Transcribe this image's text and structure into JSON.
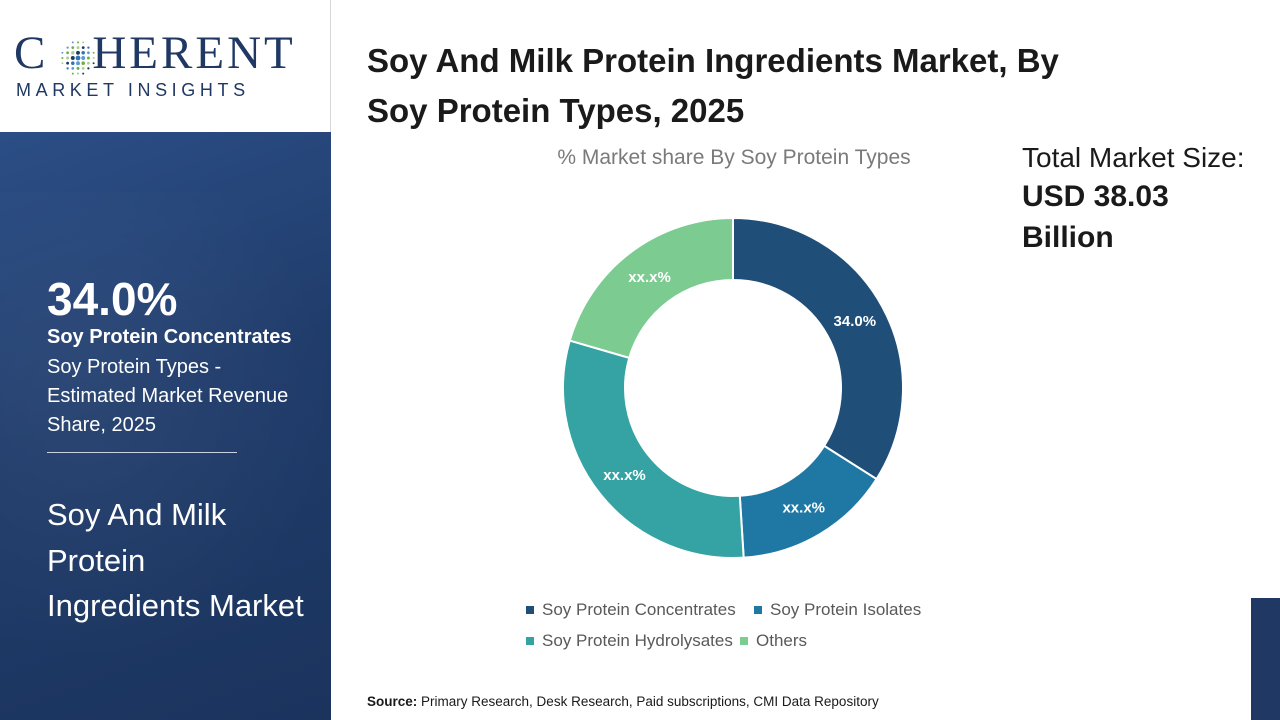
{
  "brand": {
    "logo_main": "C   HERENT",
    "logo_sub": "MARKET INSIGHTS"
  },
  "sidebar": {
    "highlight_value": "34.0%",
    "highlight_segment": "Soy Protein Concentrates",
    "highlight_description": "Soy Protein Types - Estimated Market Revenue Share, 2025",
    "market_name": "Soy And Milk Protein Ingredients Market"
  },
  "title": "Soy And Milk Protein Ingredients Market, By Soy Protein Types, 2025",
  "total_market": {
    "label": "Total Market Size:",
    "value": "USD 38.03 Billion"
  },
  "source": {
    "label": "Source:",
    "text": "Primary Research, Desk Research, Paid subscriptions, CMI Data Repository"
  },
  "chart_data": {
    "type": "pie",
    "subtype": "donut",
    "title": "% Market share By Soy Protein Types",
    "categories": [
      "Soy Protein Concentrates",
      "Soy Protein Isolates",
      "Soy Protein Hydrolysates",
      "Others"
    ],
    "values": [
      34.0,
      15.0,
      30.5,
      20.5
    ],
    "data_labels": [
      "34.0%",
      "xx.x%",
      "xx.x%",
      "xx.x%"
    ],
    "colors": [
      "#1f4e79",
      "#1f78a4",
      "#35a3a3",
      "#7ccb91"
    ],
    "start_angle_deg": 0,
    "direction": "clockwise",
    "legend_position": "bottom"
  }
}
